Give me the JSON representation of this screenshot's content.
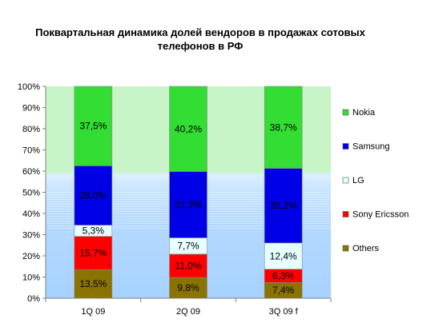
{
  "chart_data": {
    "type": "bar",
    "stacked": true,
    "title_line1": "Поквартальная динамика долей вендоров в продажах сотовых",
    "title_line2": "телефонов в РФ",
    "categories": [
      "1Q 09",
      "2Q 09",
      "3Q 09 f"
    ],
    "ylim": [
      0,
      100
    ],
    "yticks": [
      "0%",
      "10%",
      "20%",
      "30%",
      "40%",
      "50%",
      "60%",
      "70%",
      "80%",
      "90%",
      "100%"
    ],
    "legend_position": "right",
    "series": [
      {
        "name": "Others",
        "color": "#8a7300",
        "values": [
          13.5,
          9.8,
          7.4
        ],
        "labels": [
          "13,5%",
          "9,8%",
          "7,4%"
        ]
      },
      {
        "name": "Sony Ericsson",
        "color": "#ff0000",
        "values": [
          15.7,
          11.0,
          6.3
        ],
        "labels": [
          "15,7%",
          "11,0%",
          "6,3%"
        ]
      },
      {
        "name": "LG",
        "color": "#e6ffff",
        "values": [
          5.3,
          7.7,
          12.4
        ],
        "labels": [
          "5,3%",
          "7,7%",
          "12,4%"
        ]
      },
      {
        "name": "Samsung",
        "color": "#0000e6",
        "values": [
          28.0,
          31.3,
          35.2
        ],
        "labels": [
          "28,0%",
          "31,3%",
          "35,2%"
        ]
      },
      {
        "name": "Nokia",
        "color": "#33dd33",
        "values": [
          37.5,
          40.2,
          38.7
        ],
        "labels": [
          "37,5%",
          "40,2%",
          "38,7%"
        ]
      }
    ],
    "legend_order": [
      "Nokia",
      "Samsung",
      "LG",
      "Sony Ericsson",
      "Others"
    ]
  }
}
